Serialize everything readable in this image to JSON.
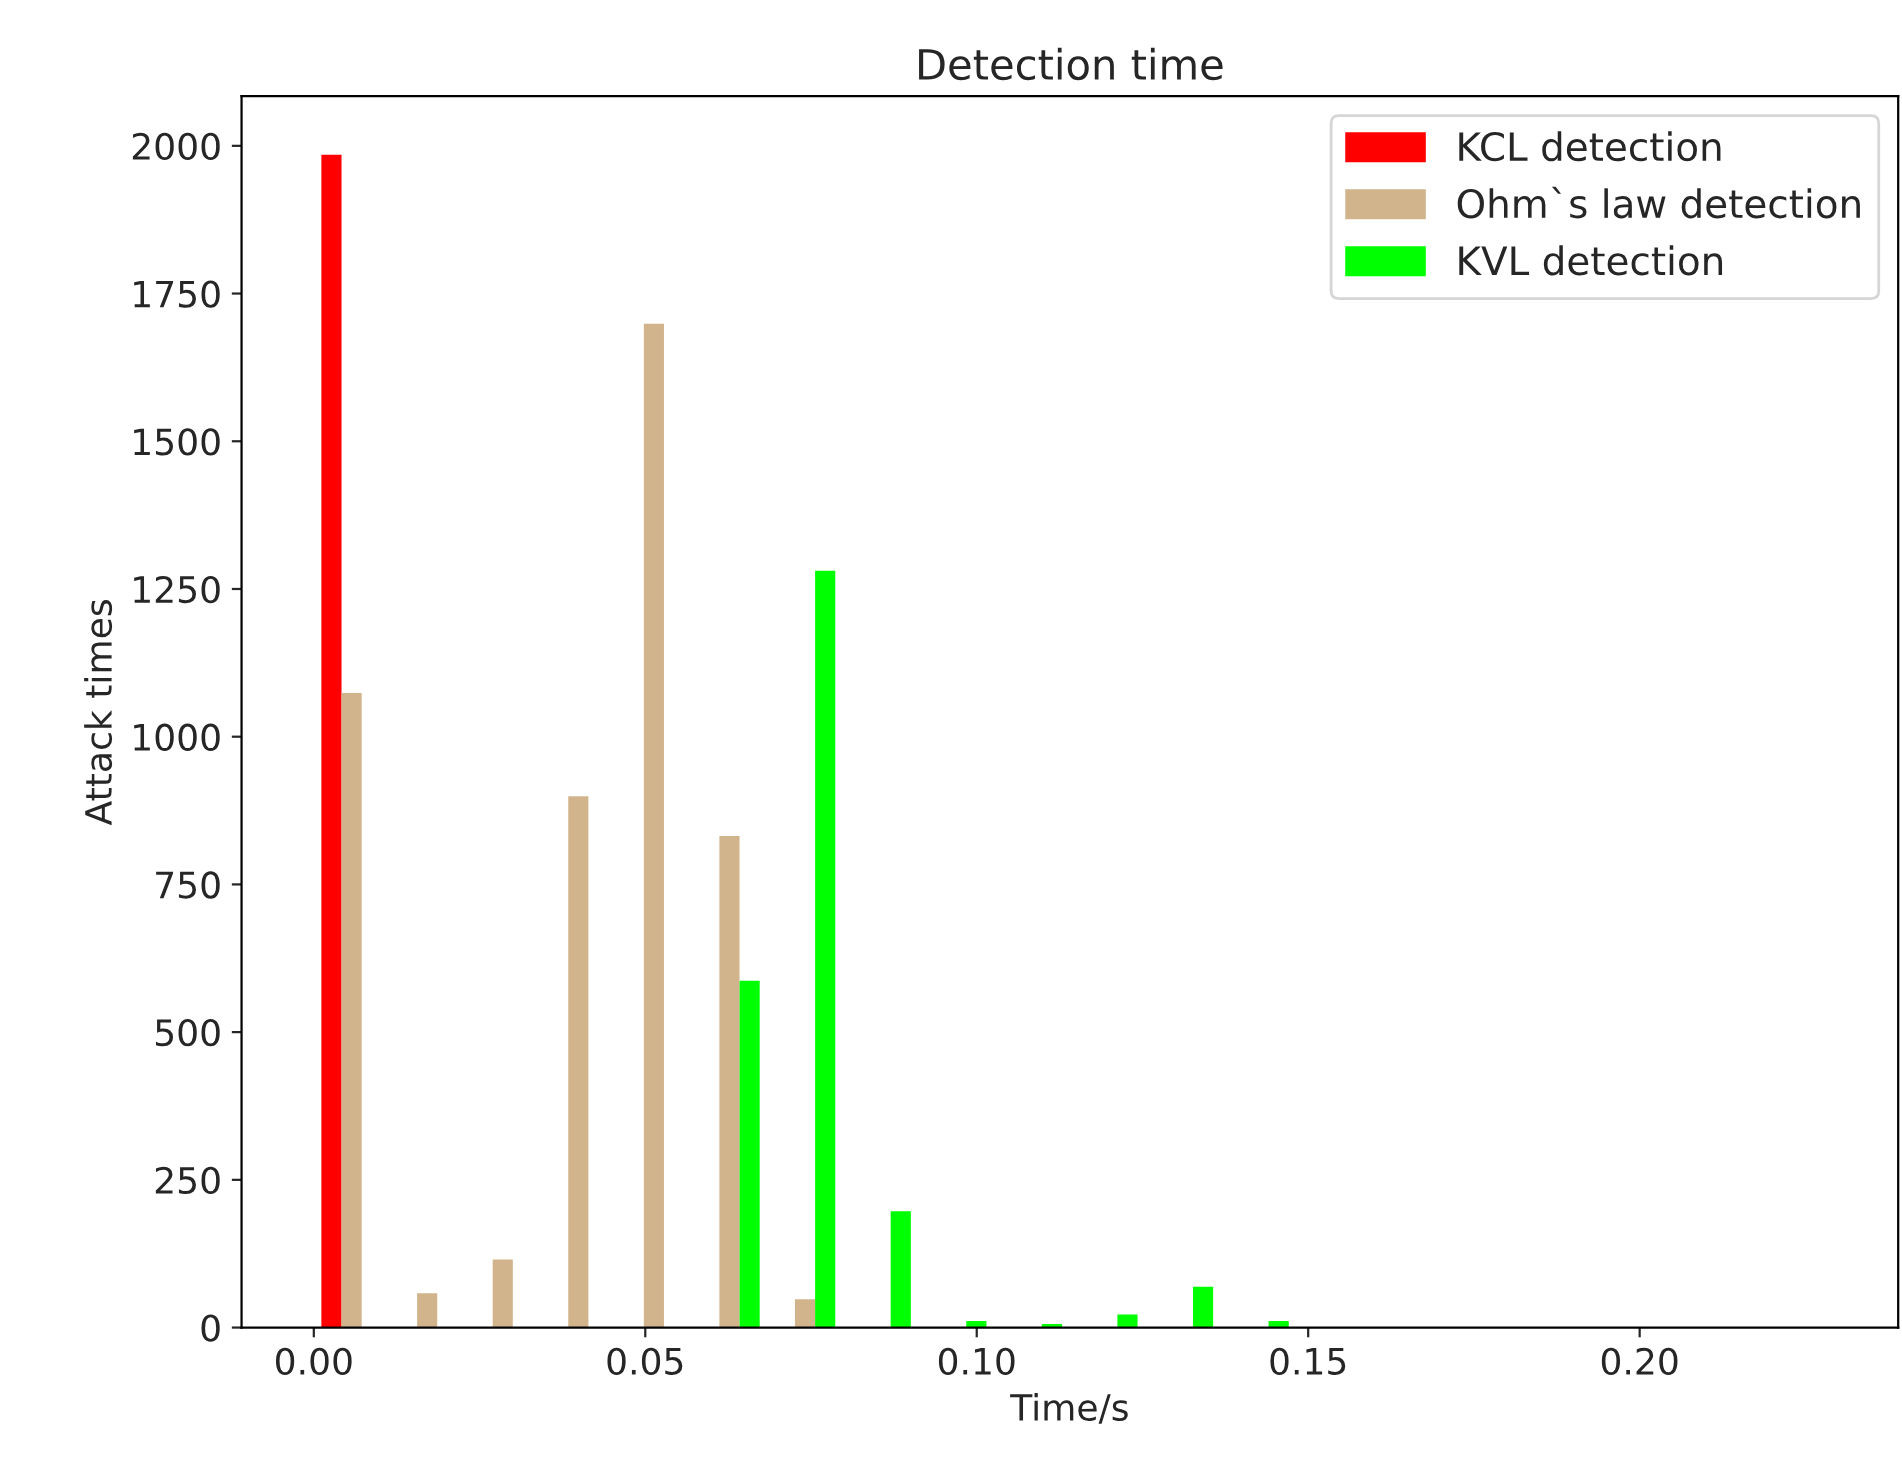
{
  "chart_data": {
    "type": "histogram",
    "title": "Detection time",
    "xlabel": "Time/s",
    "ylabel": "Attack times",
    "bins": [
      0.0,
      0.0114,
      0.0228,
      0.0342,
      0.0456,
      0.057,
      0.0684,
      0.0798,
      0.0912,
      0.1026,
      0.114,
      0.1254,
      0.1368,
      0.1482,
      0.1596,
      0.171,
      0.1824,
      0.1938,
      0.2052,
      0.2166,
      0.228
    ],
    "series": [
      {
        "name": "KCL detection",
        "color": "#ff0000",
        "values": [
          1985,
          0,
          0,
          0,
          0,
          0,
          0,
          0,
          0,
          0,
          0,
          0,
          0,
          0,
          0,
          0,
          0,
          0,
          0,
          0
        ]
      },
      {
        "name": "Ohm`s law detection",
        "color": "#d2b48c",
        "values": [
          1074,
          58,
          115,
          899,
          1699,
          832,
          48,
          0,
          0,
          0,
          0,
          0,
          0,
          0,
          0,
          0,
          0,
          0,
          0,
          0
        ]
      },
      {
        "name": "KVL detection",
        "color": "#00ff00",
        "values": [
          0,
          0,
          0,
          0,
          0,
          587,
          1281,
          197,
          11,
          6,
          22,
          69,
          11,
          0,
          0,
          0,
          0,
          0,
          0,
          0
        ]
      }
    ],
    "xlim": [
      -0.0109,
      0.239
    ],
    "ylim": [
      0,
      2084
    ],
    "xticks": [
      {
        "value": 0,
        "label": "0.00"
      },
      0.05,
      {
        "value": 0.1,
        "label": "0.10"
      },
      0.15,
      {
        "value": 0.2,
        "label": "0.20"
      }
    ],
    "yticks": [
      0,
      250,
      500,
      750,
      1000,
      1250,
      1500,
      1750,
      2000
    ],
    "legend": "top right",
    "grid": false
  }
}
